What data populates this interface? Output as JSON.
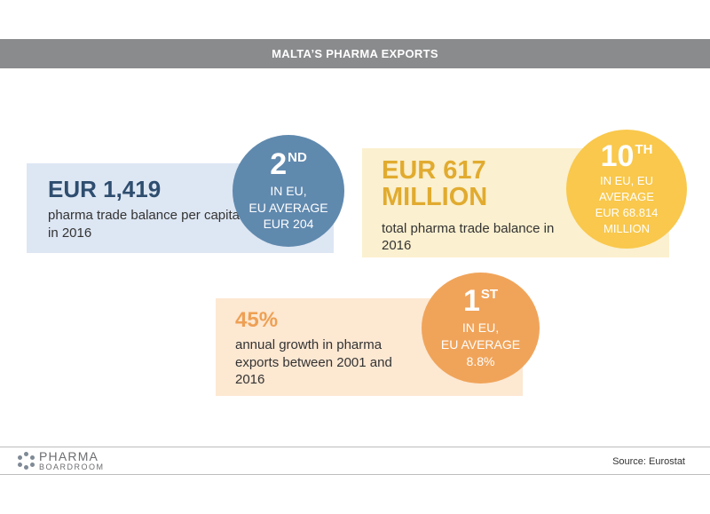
{
  "header": {
    "title": "MALTA’S PHARMA EXPORTS"
  },
  "cards": [
    {
      "value": "EUR 1,419",
      "description": "pharma trade balance per capita in 2016",
      "rank": {
        "number": "2",
        "suffix": "ND",
        "lines": [
          "IN EU,",
          "EU AVERAGE",
          "EUR 204"
        ]
      }
    },
    {
      "value": "EUR 617 MILLION",
      "description": "total pharma trade balance in 2016",
      "rank": {
        "number": "10",
        "suffix": "TH",
        "lines": [
          "IN EU, EU",
          "AVERAGE",
          "EUR 68.814",
          "MILLION"
        ]
      }
    },
    {
      "value": "45%",
      "description": "annual growth in pharma exports between 2001 and 2016",
      "rank": {
        "number": "1",
        "suffix": "ST",
        "lines": [
          "IN EU,",
          "EU AVERAGE",
          "8.8%"
        ]
      }
    }
  ],
  "colors": {
    "header_bg": "#8a8b8d",
    "blue": "#6089ae",
    "yellow": "#f9c84c",
    "orange": "#f0a45a"
  },
  "footer": {
    "logo_line1": "PHARMA",
    "logo_line2": "BOARDROOM",
    "source": "Source:  Eurostat"
  }
}
